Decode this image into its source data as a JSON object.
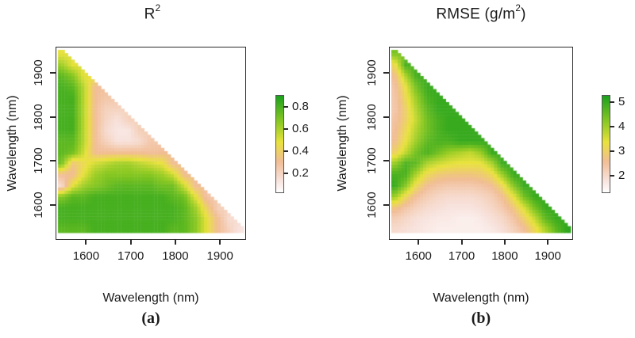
{
  "colors": {
    "background": "#ffffff",
    "text": "#1b1b1b",
    "box_border": "#2a2a2a",
    "colormap_stops": [
      {
        "t": 0.0,
        "hex": "#ffffff"
      },
      {
        "t": 0.12,
        "hex": "#f8e3de"
      },
      {
        "t": 0.32,
        "hex": "#f1bd95"
      },
      {
        "t": 0.52,
        "hex": "#e9e23c"
      },
      {
        "t": 0.72,
        "hex": "#8fca24"
      },
      {
        "t": 1.0,
        "hex": "#1ba01d"
      }
    ]
  },
  "panels": [
    {
      "title_pre": "R",
      "title_sup": "2",
      "title_post": "",
      "xlabel": "Wavelength (nm)",
      "ylabel": "Wavelength (nm)",
      "tag": "(a)"
    },
    {
      "title_pre": "RMSE (g/m",
      "title_sup": "2",
      "title_post": ")",
      "xlabel": "Wavelength (nm)",
      "ylabel": "Wavelength (nm)",
      "tag": "(b)"
    }
  ],
  "chart_data": [
    {
      "type": "heatmap",
      "title": "R2",
      "xlabel": "Wavelength (nm)",
      "ylabel": "Wavelength (nm)",
      "x_ticks": [
        1600,
        1700,
        1800,
        1900
      ],
      "y_ticks": [
        1600,
        1700,
        1800,
        1900
      ],
      "wavelength_start_nm": 1545,
      "wavelength_step_nm": 25,
      "grid_note": "Triangular grid: row r (top->bottom) is y = 1945-25r nm; entries are x = 1545..(1545+25r) nm; cells exist only where x+y <= 3490 nm",
      "value_name": "R2",
      "value_range": [
        0.05,
        0.9
      ],
      "colorbar": {
        "ticks": [
          0.2,
          0.4,
          0.6,
          0.8
        ],
        "range": [
          0.035,
          0.91
        ]
      },
      "norm_range": [
        0.0,
        0.95
      ],
      "values": [
        [
          0.5
        ],
        [
          0.65,
          0.5
        ],
        [
          0.8,
          0.7,
          0.5
        ],
        [
          0.85,
          0.8,
          0.6,
          0.3
        ],
        [
          0.85,
          0.85,
          0.6,
          0.3,
          0.25
        ],
        [
          0.85,
          0.85,
          0.6,
          0.3,
          0.2,
          0.2
        ],
        [
          0.85,
          0.85,
          0.6,
          0.3,
          0.18,
          0.12,
          0.2
        ],
        [
          0.85,
          0.85,
          0.6,
          0.3,
          0.15,
          0.1,
          0.1,
          0.22
        ],
        [
          0.8,
          0.8,
          0.6,
          0.3,
          0.2,
          0.12,
          0.12,
          0.15,
          0.25
        ],
        [
          0.8,
          0.75,
          0.55,
          0.3,
          0.3,
          0.3,
          0.3,
          0.3,
          0.28,
          0.3
        ],
        [
          0.75,
          0.35,
          0.45,
          0.55,
          0.6,
          0.65,
          0.65,
          0.6,
          0.55,
          0.5,
          0.3
        ],
        [
          0.3,
          0.3,
          0.5,
          0.65,
          0.7,
          0.7,
          0.7,
          0.7,
          0.7,
          0.65,
          0.55,
          0.3
        ],
        [
          0.15,
          0.5,
          0.65,
          0.7,
          0.75,
          0.8,
          0.8,
          0.8,
          0.8,
          0.75,
          0.75,
          0.55,
          0.3
        ],
        [
          0.7,
          0.8,
          0.8,
          0.85,
          0.85,
          0.85,
          0.85,
          0.85,
          0.85,
          0.85,
          0.8,
          0.75,
          0.5,
          0.25
        ],
        [
          0.85,
          0.85,
          0.85,
          0.85,
          0.85,
          0.85,
          0.85,
          0.85,
          0.85,
          0.85,
          0.85,
          0.8,
          0.65,
          0.4,
          0.2
        ],
        [
          0.85,
          0.85,
          0.85,
          0.85,
          0.85,
          0.85,
          0.85,
          0.85,
          0.85,
          0.85,
          0.85,
          0.8,
          0.7,
          0.5,
          0.3,
          0.15
        ],
        [
          0.8,
          0.8,
          0.8,
          0.85,
          0.85,
          0.85,
          0.85,
          0.85,
          0.85,
          0.85,
          0.8,
          0.8,
          0.7,
          0.5,
          0.3,
          0.2,
          0.1
        ]
      ]
    },
    {
      "type": "heatmap",
      "title": "RMSE (g/m2)",
      "xlabel": "Wavelength (nm)",
      "ylabel": "Wavelength (nm)",
      "x_ticks": [
        1600,
        1700,
        1800,
        1900
      ],
      "y_ticks": [
        1600,
        1700,
        1800,
        1900
      ],
      "wavelength_start_nm": 1545,
      "wavelength_step_nm": 25,
      "grid_note": "Triangular grid: row r (top->bottom) is y = 1945-25r nm; entries are x = 1545..(1545+25r) nm; cells exist only where x+y <= 3490 nm",
      "value_name": "RMSE g/m2",
      "value_range": [
        1.4,
        5.3
      ],
      "colorbar": {
        "ticks": [
          2,
          3,
          4,
          5
        ],
        "range": [
          1.35,
          5.3
        ]
      },
      "norm_range": [
        1.2,
        5.5
      ],
      "values": [
        [
          4.5
        ],
        [
          3.2,
          5.0
        ],
        [
          2.6,
          4.0,
          5.1
        ],
        [
          2.4,
          3.4,
          4.6,
          5.2
        ],
        [
          2.3,
          3.2,
          4.2,
          5.0,
          5.2
        ],
        [
          2.3,
          3.0,
          4.0,
          4.8,
          5.2,
          5.2
        ],
        [
          2.4,
          3.0,
          3.8,
          4.6,
          5.0,
          5.2,
          5.2
        ],
        [
          2.5,
          3.2,
          4.0,
          4.6,
          5.0,
          5.2,
          5.2,
          5.2
        ],
        [
          2.6,
          3.4,
          4.2,
          4.8,
          5.0,
          5.0,
          5.2,
          5.2,
          5.2
        ],
        [
          3.0,
          3.8,
          4.6,
          5.0,
          4.6,
          4.2,
          4.0,
          3.8,
          4.2,
          5.2
        ],
        [
          4.2,
          5.0,
          4.8,
          4.0,
          3.7,
          3.5,
          3.4,
          3.4,
          3.4,
          4.0,
          5.2
        ],
        [
          5.0,
          5.0,
          4.0,
          3.2,
          2.9,
          2.8,
          2.8,
          2.8,
          2.9,
          3.2,
          4.2,
          5.2
        ],
        [
          5.2,
          4.4,
          3.2,
          2.6,
          2.4,
          2.3,
          2.3,
          2.3,
          2.4,
          2.6,
          3.2,
          4.4,
          5.2
        ],
        [
          4.2,
          3.2,
          2.5,
          2.2,
          2.0,
          1.9,
          1.9,
          1.9,
          2.0,
          2.2,
          2.6,
          3.4,
          4.6,
          5.2
        ],
        [
          2.8,
          2.4,
          2.1,
          1.9,
          1.8,
          1.7,
          1.7,
          1.7,
          1.8,
          2.0,
          2.3,
          2.8,
          3.6,
          4.6,
          5.2
        ],
        [
          2.2,
          2.0,
          1.8,
          1.7,
          1.6,
          1.6,
          1.5,
          1.5,
          1.6,
          1.8,
          2.0,
          2.4,
          3.0,
          3.8,
          4.8,
          5.2
        ],
        [
          1.9,
          1.8,
          1.7,
          1.6,
          1.5,
          1.5,
          1.5,
          1.5,
          1.5,
          1.6,
          1.8,
          2.1,
          2.5,
          3.2,
          4.0,
          4.8,
          5.3
        ]
      ]
    }
  ]
}
